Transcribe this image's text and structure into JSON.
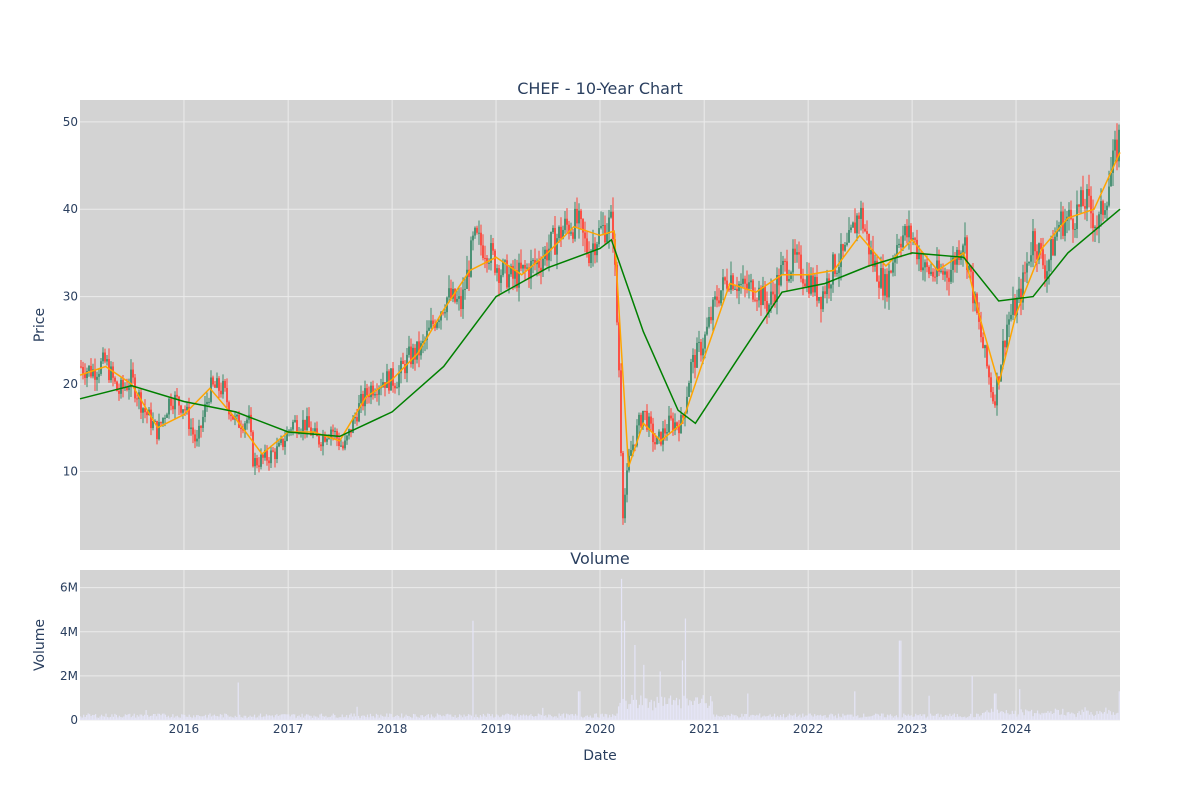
{
  "chart_data": [
    {
      "type": "candlestick",
      "title": "CHEF - 10-Year Chart",
      "ylabel": "Price",
      "ylim": [
        1,
        52.5
      ],
      "yticks": [
        "10",
        "20",
        "30",
        "40",
        "50"
      ],
      "xlim": [
        "2015-01-01",
        "2024-12-31"
      ],
      "grid": true,
      "colors": {
        "up": "#3d8b6b",
        "down": "#ff4136",
        "ma_fast": "#ffa500",
        "ma_slow": "#008000",
        "background": "#d3d3d3"
      },
      "series": [
        {
          "kind": "ohlc-approx-close",
          "points": [
            [
              "2015-01-01",
              22
            ],
            [
              "2015-02-15",
              21.5
            ],
            [
              "2015-04-01",
              22.5
            ],
            [
              "2015-05-15",
              19
            ],
            [
              "2015-07-01",
              20.5
            ],
            [
              "2015-08-15",
              17
            ],
            [
              "2015-10-01",
              14.5
            ],
            [
              "2015-11-15",
              18.5
            ],
            [
              "2016-01-01",
              17.5
            ],
            [
              "2016-02-15",
              13
            ],
            [
              "2016-04-01",
              19.5
            ],
            [
              "2016-05-15",
              19.5
            ],
            [
              "2016-07-01",
              15.5
            ],
            [
              "2016-08-15",
              16
            ],
            [
              "2016-09-01",
              11
            ],
            [
              "2016-10-15",
              11.5
            ],
            [
              "2016-12-01",
              12.5
            ],
            [
              "2017-01-15",
              15.5
            ],
            [
              "2017-03-01",
              15.5
            ],
            [
              "2017-04-15",
              13.5
            ],
            [
              "2017-06-01",
              15
            ],
            [
              "2017-07-15",
              12.5
            ],
            [
              "2017-09-01",
              17
            ],
            [
              "2017-10-15",
              19.5
            ],
            [
              "2017-12-01",
              20.5
            ],
            [
              "2018-01-15",
              20.5
            ],
            [
              "2018-03-01",
              23
            ],
            [
              "2018-04-15",
              24
            ],
            [
              "2018-06-01",
              27.5
            ],
            [
              "2018-07-15",
              30
            ],
            [
              "2018-09-01",
              29
            ],
            [
              "2018-10-15",
              36.5
            ],
            [
              "2018-12-01",
              35.5
            ],
            [
              "2019-01-15",
              33
            ],
            [
              "2019-03-01",
              32
            ],
            [
              "2019-04-15",
              33
            ],
            [
              "2019-06-01",
              34
            ],
            [
              "2019-07-15",
              36
            ],
            [
              "2019-09-01",
              38
            ],
            [
              "2019-10-15",
              38.5
            ],
            [
              "2019-11-20",
              35
            ],
            [
              "2020-01-01",
              37.5
            ],
            [
              "2020-02-15",
              38.5
            ],
            [
              "2020-03-10",
              20
            ],
            [
              "2020-03-20",
              5
            ],
            [
              "2020-04-15",
              12
            ],
            [
              "2020-06-01",
              17
            ],
            [
              "2020-07-15",
              13
            ],
            [
              "2020-09-01",
              15.5
            ],
            [
              "2020-10-15",
              15.5
            ],
            [
              "2020-11-15",
              22
            ],
            [
              "2021-01-01",
              25
            ],
            [
              "2021-02-15",
              30
            ],
            [
              "2021-04-01",
              32.5
            ],
            [
              "2021-05-15",
              31
            ],
            [
              "2021-07-01",
              31
            ],
            [
              "2021-08-15",
              29
            ],
            [
              "2021-10-01",
              33
            ],
            [
              "2021-11-15",
              34
            ],
            [
              "2022-01-01",
              32
            ],
            [
              "2022-02-15",
              30
            ],
            [
              "2022-04-01",
              33.5
            ],
            [
              "2022-05-15",
              35
            ],
            [
              "2022-07-01",
              40
            ],
            [
              "2022-08-15",
              34
            ],
            [
              "2022-10-01",
              31
            ],
            [
              "2022-11-15",
              37
            ],
            [
              "2023-01-01",
              37
            ],
            [
              "2023-02-15",
              33
            ],
            [
              "2023-04-01",
              32.5
            ],
            [
              "2023-05-15",
              33
            ],
            [
              "2023-07-01",
              37
            ],
            [
              "2023-08-15",
              28
            ],
            [
              "2023-10-15",
              18
            ],
            [
              "2023-12-01",
              27
            ],
            [
              "2024-01-15",
              30
            ],
            [
              "2024-03-01",
              37
            ],
            [
              "2024-04-15",
              33
            ],
            [
              "2024-06-01",
              38.5
            ],
            [
              "2024-07-15",
              39
            ],
            [
              "2024-09-01",
              41
            ],
            [
              "2024-10-15",
              38
            ],
            [
              "2024-11-15",
              42
            ],
            [
              "2024-12-31",
              48.5
            ]
          ]
        },
        {
          "kind": "moving-average",
          "role": "ma_fast",
          "points": [
            [
              "2015-01-01",
              21
            ],
            [
              "2015-04-01",
              22
            ],
            [
              "2015-07-01",
              20
            ],
            [
              "2015-10-01",
              15
            ],
            [
              "2016-01-01",
              16.5
            ],
            [
              "2016-04-01",
              19.5
            ],
            [
              "2016-07-01",
              16
            ],
            [
              "2016-10-01",
              12
            ],
            [
              "2017-01-01",
              14.5
            ],
            [
              "2017-04-01",
              14.5
            ],
            [
              "2017-07-01",
              13.5
            ],
            [
              "2017-10-01",
              18.5
            ],
            [
              "2018-01-01",
              20.5
            ],
            [
              "2018-04-01",
              23.5
            ],
            [
              "2018-07-01",
              28.5
            ],
            [
              "2018-10-01",
              33
            ],
            [
              "2019-01-01",
              34.5
            ],
            [
              "2019-04-01",
              32.5
            ],
            [
              "2019-07-01",
              35
            ],
            [
              "2019-10-01",
              38
            ],
            [
              "2020-01-01",
              37
            ],
            [
              "2020-02-20",
              37.5
            ],
            [
              "2020-04-10",
              10.5
            ],
            [
              "2020-06-01",
              15.5
            ],
            [
              "2020-08-01",
              13.5
            ],
            [
              "2020-10-15",
              15.5
            ],
            [
              "2021-01-01",
              23
            ],
            [
              "2021-04-01",
              31.5
            ],
            [
              "2021-07-01",
              30.5
            ],
            [
              "2021-10-01",
              32.5
            ],
            [
              "2022-01-01",
              32.5
            ],
            [
              "2022-04-01",
              33
            ],
            [
              "2022-07-01",
              37
            ],
            [
              "2022-10-01",
              33.5
            ],
            [
              "2023-01-01",
              36.5
            ],
            [
              "2023-04-01",
              33
            ],
            [
              "2023-07-01",
              35
            ],
            [
              "2023-09-01",
              27
            ],
            [
              "2023-11-01",
              20
            ],
            [
              "2024-01-01",
              28
            ],
            [
              "2024-04-01",
              35.5
            ],
            [
              "2024-07-01",
              39
            ],
            [
              "2024-10-01",
              40
            ],
            [
              "2024-12-31",
              46.5
            ]
          ]
        },
        {
          "kind": "moving-average",
          "role": "ma_slow",
          "points": [
            [
              "2015-01-01",
              18.3
            ],
            [
              "2015-07-01",
              19.8
            ],
            [
              "2016-01-01",
              18
            ],
            [
              "2016-07-01",
              16.8
            ],
            [
              "2017-01-01",
              14.5
            ],
            [
              "2017-07-01",
              14
            ],
            [
              "2018-01-01",
              16.8
            ],
            [
              "2018-07-01",
              22
            ],
            [
              "2019-01-01",
              30
            ],
            [
              "2019-07-01",
              33.3
            ],
            [
              "2020-01-01",
              35.5
            ],
            [
              "2020-02-10",
              36.5
            ],
            [
              "2020-06-01",
              26
            ],
            [
              "2020-10-01",
              17
            ],
            [
              "2020-12-01",
              15.5
            ],
            [
              "2021-05-01",
              23
            ],
            [
              "2021-10-01",
              30.5
            ],
            [
              "2022-03-01",
              31.5
            ],
            [
              "2022-08-01",
              33.5
            ],
            [
              "2023-01-01",
              35
            ],
            [
              "2023-07-01",
              34.5
            ],
            [
              "2023-11-01",
              29.5
            ],
            [
              "2024-03-01",
              30
            ],
            [
              "2024-07-01",
              35
            ],
            [
              "2024-12-31",
              40
            ]
          ]
        }
      ]
    },
    {
      "type": "bar",
      "title": "Volume",
      "ylabel": "Volume",
      "xlabel": "Date",
      "ylim": [
        0,
        6800000
      ],
      "yticks": [
        "0",
        "2M",
        "4M",
        "6M"
      ],
      "xticks": [
        "2016",
        "2017",
        "2018",
        "2019",
        "2020",
        "2021",
        "2022",
        "2023",
        "2024"
      ],
      "grid": true,
      "colors": {
        "bar": "#e5e5f7"
      },
      "spikes": [
        [
          "2015-08-20",
          450000
        ],
        [
          "2016-07-10",
          1700000
        ],
        [
          "2017-09-01",
          600000
        ],
        [
          "2018-10-10",
          4500000
        ],
        [
          "2019-06-15",
          550000
        ],
        [
          "2019-10-20",
          1300000
        ],
        [
          "2020-03-15",
          6400000
        ],
        [
          "2020-03-25",
          4500000
        ],
        [
          "2020-05-01",
          3400000
        ],
        [
          "2020-06-01",
          2500000
        ],
        [
          "2020-08-01",
          2200000
        ],
        [
          "2020-10-15",
          2700000
        ],
        [
          "2020-10-25",
          4600000
        ],
        [
          "2021-06-01",
          1200000
        ],
        [
          "2022-06-15",
          1300000
        ],
        [
          "2022-11-20",
          3600000
        ],
        [
          "2023-03-01",
          1100000
        ],
        [
          "2023-08-01",
          2000000
        ],
        [
          "2023-10-20",
          1200000
        ],
        [
          "2024-01-15",
          1400000
        ],
        [
          "2024-12-31",
          1300000
        ]
      ]
    }
  ]
}
